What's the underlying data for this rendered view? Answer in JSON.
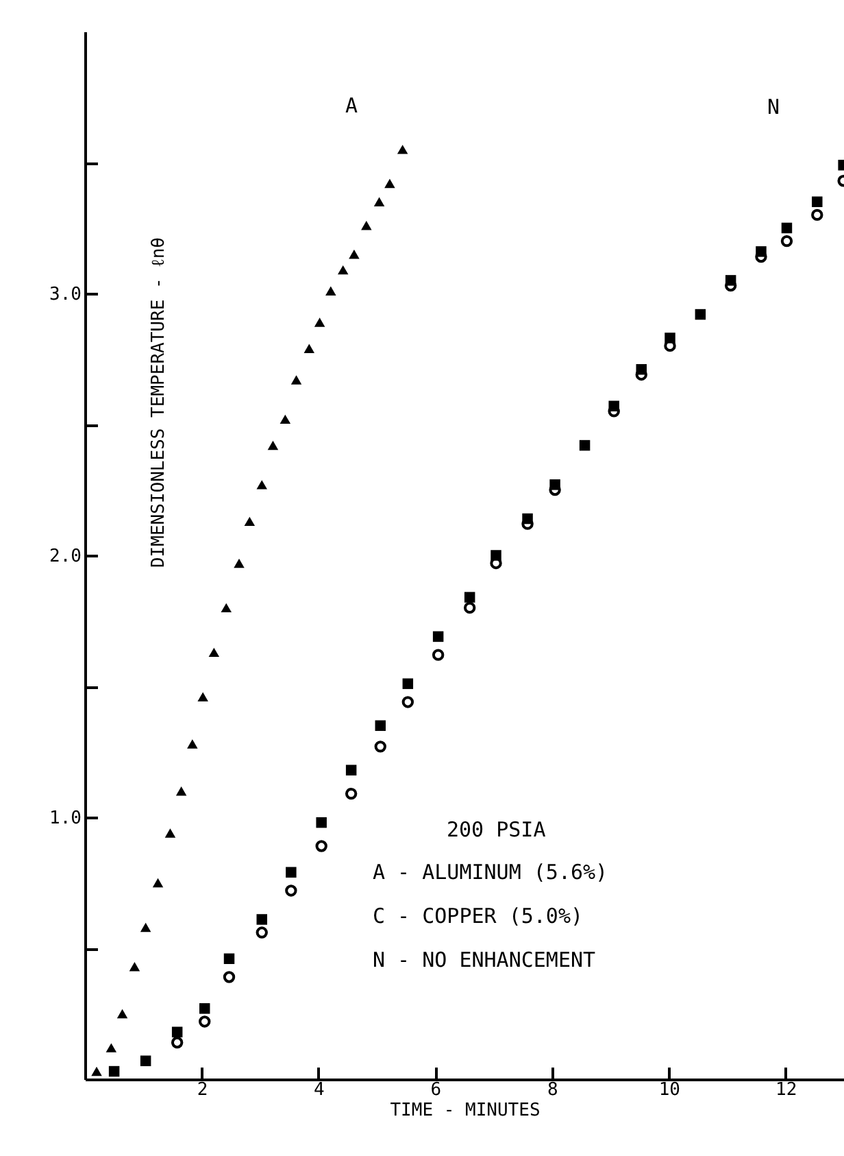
{
  "chart_data": {
    "type": "scatter",
    "xlabel": "TIME - MINUTES",
    "ylabel": "DIMENSIONLESS TEMPERATURE - ℓnθ",
    "xlim": [
      0,
      13
    ],
    "ylim": [
      0,
      4
    ],
    "xticks": [
      2,
      4,
      6,
      8,
      10,
      12
    ],
    "yticks": [
      {
        "value": 0.5,
        "label": null
      },
      {
        "value": 1,
        "label": "1.0"
      },
      {
        "value": 1.5,
        "label": null
      },
      {
        "value": 2,
        "label": "2.0"
      },
      {
        "value": 2.5,
        "label": null
      },
      {
        "value": 3,
        "label": "3.0"
      },
      {
        "value": 3.5,
        "label": null
      }
    ],
    "grid": false,
    "series": [
      {
        "color": "#000000",
        "marker": "triangle",
        "x": [
          0.2,
          0.45,
          0.64,
          0.85,
          1.04,
          1.25,
          1.46,
          1.65,
          1.84,
          2.02,
          2.21,
          2.42,
          2.64,
          2.82,
          3.03,
          3.22,
          3.43,
          3.62,
          3.84,
          4.02,
          4.21,
          4.42,
          4.61,
          4.82,
          5.04,
          5.22,
          5.44
        ],
        "values": [
          0.03,
          0.12,
          0.25,
          0.43,
          0.58,
          0.75,
          0.94,
          1.1,
          1.28,
          1.46,
          1.63,
          1.8,
          1.97,
          2.13,
          2.27,
          2.42,
          2.52,
          2.67,
          2.79,
          2.89,
          3.01,
          3.09,
          3.15,
          3.26,
          3.35,
          3.42,
          3.55
        ]
      },
      {
        "color": "#000000",
        "marker": "circle",
        "x": [
          1.58,
          2.05,
          2.47,
          3.03,
          3.53,
          4.05,
          4.56,
          5.06,
          5.53,
          6.05,
          6.59,
          7.04,
          7.58,
          8.05,
          9.06,
          9.53,
          10.02,
          11.06,
          11.58,
          12.02,
          12.54,
          12.99
        ],
        "values": [
          0.14,
          0.22,
          0.39,
          0.56,
          0.72,
          0.89,
          1.09,
          1.27,
          1.44,
          1.62,
          1.8,
          1.97,
          2.12,
          2.25,
          2.55,
          2.69,
          2.8,
          3.03,
          3.14,
          3.2,
          3.3,
          3.43
        ]
      },
      {
        "color": "#000000",
        "marker": "square",
        "x": [
          0.5,
          1.04,
          1.58,
          2.05,
          2.47,
          3.03,
          3.53,
          4.05,
          4.56,
          5.06,
          5.53,
          6.05,
          6.59,
          7.04,
          7.58,
          8.05,
          8.56,
          9.06,
          9.53,
          10.02,
          10.54,
          11.06,
          11.58,
          12.02,
          12.54,
          12.99
        ],
        "values": [
          0.03,
          0.07,
          0.18,
          0.27,
          0.46,
          0.61,
          0.79,
          0.98,
          1.18,
          1.35,
          1.51,
          1.69,
          1.84,
          2.0,
          2.14,
          2.27,
          2.42,
          2.57,
          2.71,
          2.83,
          2.92,
          3.05,
          3.16,
          3.25,
          3.35,
          3.49
        ]
      }
    ],
    "annotations": [
      "A",
      "N",
      "200 PSIA",
      "A - ALUMINUM (5.6%)",
      "C - COPPER (5.0%)",
      "N - NO ENHANCEMENT"
    ]
  }
}
